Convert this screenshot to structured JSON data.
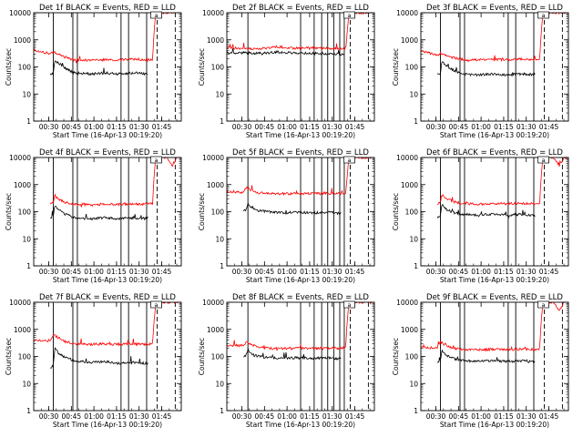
{
  "figure": {
    "xlabel": "Start Time (16-Apr-13 00:19:20)",
    "ylabel": "Counts/sec",
    "y_ticks": [
      "1",
      "10",
      "100",
      "1000",
      "10000"
    ],
    "legend_marker": "a"
  },
  "chart_data": [
    {
      "type": "line",
      "title": "Det 1f  BLACK = Events, RED = LLD",
      "y_scale": "log",
      "ylim": [
        1,
        10000
      ],
      "x_ticks": [
        "00:30",
        "00:45",
        "01:00",
        "01:15",
        "01:30",
        "01:45"
      ],
      "x_tick_times": [
        30,
        45,
        60,
        75,
        90,
        105
      ],
      "xlim": [
        20,
        118
      ],
      "solid_markers": [
        33,
        46,
        49,
        78,
        83,
        95
      ],
      "dashed_markers": [
        102,
        114
      ],
      "series": [
        {
          "name": "LLD",
          "color": "#ff0000",
          "start": 20,
          "end": 116,
          "x": [
            20,
            31,
            33,
            36,
            41,
            47,
            57,
            67,
            77,
            87,
            95,
            99,
            99.5,
            101,
            116
          ],
          "y": [
            420,
            300,
            360,
            300,
            230,
            180,
            175,
            185,
            180,
            195,
            180,
            185,
            900,
            10000,
            10000
          ]
        },
        {
          "name": "Events",
          "color": "#000000",
          "start": 31,
          "end": 96,
          "x": [
            31,
            33,
            34,
            36,
            41,
            47,
            57,
            67,
            77,
            87,
            96
          ],
          "y": [
            60,
            55,
            180,
            140,
            90,
            60,
            55,
            60,
            55,
            60,
            55
          ]
        }
      ]
    },
    {
      "type": "line",
      "title": "Det 2f  BLACK = Events, RED = LLD",
      "y_scale": "log",
      "ylim": [
        1,
        10000
      ],
      "x_ticks": [
        "00:30",
        "00:45",
        "01:00",
        "01:15",
        "01:30",
        "01:45"
      ],
      "x_tick_times": [
        30,
        45,
        60,
        75,
        90,
        105
      ],
      "xlim": [
        20,
        118
      ],
      "solid_markers": [
        34,
        69,
        78,
        83,
        87,
        91,
        95,
        98
      ],
      "dashed_markers": [
        102,
        114
      ],
      "series": [
        {
          "name": "LLD",
          "color": "#ff0000",
          "start": 20,
          "end": 116,
          "x": [
            20,
            34,
            44,
            54,
            64,
            74,
            84,
            94,
            99,
            100,
            101,
            116
          ],
          "y": [
            520,
            460,
            480,
            560,
            490,
            520,
            480,
            470,
            460,
            2000,
            10000,
            10000
          ]
        },
        {
          "name": "Events",
          "color": "#000000",
          "start": 20,
          "end": 98,
          "x": [
            20,
            34,
            44,
            54,
            64,
            74,
            84,
            94,
            98
          ],
          "y": [
            330,
            330,
            320,
            350,
            330,
            320,
            310,
            290,
            300
          ]
        }
      ]
    },
    {
      "type": "line",
      "title": "Det 3f  BLACK = Events, RED = LLD",
      "y_scale": "log",
      "ylim": [
        1,
        10000
      ],
      "x_ticks": [
        "00:30",
        "00:45",
        "01:00",
        "01:15",
        "01:30",
        "01:45"
      ],
      "x_tick_times": [
        30,
        45,
        60,
        75,
        90,
        105
      ],
      "xlim": [
        20,
        118
      ],
      "solid_markers": [
        33,
        46,
        49,
        78,
        83,
        95
      ],
      "dashed_markers": [
        102,
        114
      ],
      "series": [
        {
          "name": "LLD",
          "color": "#ff0000",
          "start": 20,
          "end": 116,
          "x": [
            20,
            31,
            33,
            36,
            41,
            47,
            57,
            67,
            77,
            87,
            95,
            99,
            99.5,
            101,
            116
          ],
          "y": [
            400,
            260,
            320,
            280,
            220,
            190,
            180,
            190,
            185,
            195,
            190,
            195,
            900,
            10000,
            10000
          ]
        },
        {
          "name": "Events",
          "color": "#000000",
          "start": 31,
          "end": 96,
          "x": [
            31,
            33,
            34,
            36,
            41,
            47,
            57,
            67,
            77,
            87,
            96
          ],
          "y": [
            60,
            55,
            160,
            120,
            80,
            55,
            50,
            55,
            50,
            55,
            50
          ]
        }
      ]
    },
    {
      "type": "line",
      "title": "Det 4f  BLACK = Events, RED = LLD",
      "y_scale": "log",
      "ylim": [
        1,
        10000
      ],
      "x_ticks": [
        "00:30",
        "00:45",
        "01:00",
        "01:15",
        "01:30",
        "01:45"
      ],
      "x_tick_times": [
        30,
        45,
        60,
        75,
        90,
        105
      ],
      "xlim": [
        20,
        118
      ],
      "solid_markers": [
        33,
        46,
        49,
        78,
        83,
        95
      ],
      "dashed_markers": [
        102,
        114
      ],
      "series": [
        {
          "name": "LLD",
          "color": "#ff0000",
          "start": 31,
          "end": 118,
          "x": [
            31,
            33,
            34,
            36,
            41,
            47,
            57,
            67,
            77,
            87,
            95,
            99,
            99.5,
            101,
            108,
            112,
            115,
            118
          ],
          "y": [
            200,
            220,
            400,
            300,
            220,
            190,
            180,
            190,
            185,
            195,
            190,
            195,
            900,
            10000,
            10000,
            5000,
            10000,
            10000
          ]
        },
        {
          "name": "Events",
          "color": "#000000",
          "start": 31,
          "end": 96,
          "x": [
            31,
            33,
            34,
            36,
            41,
            47,
            57,
            67,
            77,
            87,
            96
          ],
          "y": [
            60,
            70,
            160,
            120,
            80,
            60,
            55,
            60,
            55,
            60,
            55
          ]
        }
      ]
    },
    {
      "type": "line",
      "title": "Det 5f  BLACK = Events, RED = LLD",
      "y_scale": "log",
      "ylim": [
        1,
        10000
      ],
      "x_ticks": [
        "00:30",
        "00:45",
        "01:00",
        "01:15",
        "01:30",
        "01:45"
      ],
      "x_tick_times": [
        30,
        45,
        60,
        75,
        90,
        105
      ],
      "xlim": [
        20,
        118
      ],
      "solid_markers": [
        34,
        69,
        78,
        83,
        87,
        91,
        95,
        98
      ],
      "dashed_markers": [
        102,
        114
      ],
      "series": [
        {
          "name": "LLD",
          "color": "#ff0000",
          "start": 20,
          "end": 116,
          "x": [
            20,
            31,
            33,
            36,
            41,
            47,
            57,
            67,
            77,
            87,
            95,
            99,
            99.5,
            101,
            116
          ],
          "y": [
            560,
            520,
            800,
            600,
            500,
            470,
            460,
            470,
            470,
            480,
            470,
            480,
            1000,
            10000,
            10000
          ]
        },
        {
          "name": "Events",
          "color": "#000000",
          "start": 31,
          "end": 96,
          "x": [
            31,
            33,
            34,
            36,
            41,
            47,
            57,
            67,
            77,
            87,
            96
          ],
          "y": [
            110,
            120,
            200,
            150,
            110,
            100,
            90,
            95,
            90,
            95,
            85
          ]
        }
      ]
    },
    {
      "type": "line",
      "title": "Det 6f  BLACK = Events, RED = LLD",
      "y_scale": "log",
      "ylim": [
        1,
        10000
      ],
      "x_ticks": [
        "00:30",
        "00:45",
        "01:00",
        "01:15",
        "01:30",
        "01:45"
      ],
      "x_tick_times": [
        30,
        45,
        60,
        75,
        90,
        105
      ],
      "xlim": [
        20,
        118
      ],
      "solid_markers": [
        33,
        46,
        49,
        78,
        83,
        95
      ],
      "dashed_markers": [
        102,
        114
      ],
      "series": [
        {
          "name": "LLD",
          "color": "#ff0000",
          "start": 31,
          "end": 118,
          "x": [
            31,
            33,
            34,
            36,
            41,
            47,
            57,
            67,
            77,
            87,
            95,
            99,
            99.5,
            101,
            108,
            112,
            115,
            118
          ],
          "y": [
            200,
            220,
            420,
            320,
            240,
            200,
            190,
            200,
            195,
            205,
            200,
            205,
            900,
            10000,
            10000,
            5000,
            10000,
            10000
          ]
        },
        {
          "name": "Events",
          "color": "#000000",
          "start": 31,
          "end": 96,
          "x": [
            31,
            33,
            34,
            36,
            41,
            47,
            57,
            67,
            77,
            87,
            96
          ],
          "y": [
            60,
            70,
            180,
            130,
            95,
            80,
            75,
            80,
            75,
            80,
            70
          ]
        }
      ]
    },
    {
      "type": "line",
      "title": "Det 7f  BLACK = Events, RED = LLD",
      "y_scale": "log",
      "ylim": [
        1,
        10000
      ],
      "x_ticks": [
        "00:30",
        "00:45",
        "01:00",
        "01:15",
        "01:30",
        "01:45"
      ],
      "x_tick_times": [
        30,
        45,
        60,
        75,
        90,
        105
      ],
      "xlim": [
        20,
        118
      ],
      "solid_markers": [
        33,
        46,
        49,
        78,
        83,
        95
      ],
      "dashed_markers": [
        102,
        114
      ],
      "series": [
        {
          "name": "LLD",
          "color": "#ff0000",
          "start": 20,
          "end": 116,
          "x": [
            20,
            31,
            33,
            36,
            41,
            47,
            57,
            67,
            77,
            87,
            95,
            99,
            99.5,
            101,
            116
          ],
          "y": [
            400,
            380,
            650,
            500,
            350,
            300,
            280,
            290,
            280,
            290,
            280,
            290,
            900,
            10000,
            10000
          ]
        },
        {
          "name": "Events",
          "color": "#000000",
          "start": 31,
          "end": 96,
          "x": [
            31,
            33,
            34,
            36,
            41,
            47,
            57,
            67,
            77,
            87,
            96
          ],
          "y": [
            40,
            45,
            200,
            140,
            90,
            70,
            60,
            65,
            55,
            60,
            55
          ]
        }
      ]
    },
    {
      "type": "line",
      "title": "Det 8f  BLACK = Events, RED = LLD",
      "y_scale": "log",
      "ylim": [
        1,
        10000
      ],
      "x_ticks": [
        "00:30",
        "00:45",
        "01:00",
        "01:15",
        "01:30",
        "01:45"
      ],
      "x_tick_times": [
        30,
        45,
        60,
        75,
        90,
        105
      ],
      "xlim": [
        20,
        118
      ],
      "solid_markers": [
        34,
        69,
        78,
        83,
        87,
        91,
        95,
        98
      ],
      "dashed_markers": [
        102,
        114
      ],
      "series": [
        {
          "name": "LLD",
          "color": "#ff0000",
          "start": 20,
          "end": 116,
          "x": [
            20,
            31,
            33,
            36,
            41,
            47,
            57,
            67,
            77,
            87,
            95,
            99,
            99.5,
            101,
            116
          ],
          "y": [
            260,
            250,
            350,
            280,
            220,
            200,
            195,
            200,
            200,
            205,
            200,
            205,
            900,
            10000,
            10000
          ]
        },
        {
          "name": "Events",
          "color": "#000000",
          "start": 31,
          "end": 96,
          "x": [
            31,
            33,
            34,
            36,
            41,
            47,
            57,
            67,
            77,
            87,
            96
          ],
          "y": [
            100,
            110,
            180,
            130,
            100,
            90,
            85,
            90,
            85,
            90,
            80
          ]
        }
      ]
    },
    {
      "type": "line",
      "title": "Det 9f  BLACK = Events, RED = LLD",
      "y_scale": "log",
      "ylim": [
        1,
        10000
      ],
      "x_ticks": [
        "00:30",
        "00:45",
        "01:00",
        "01:15",
        "01:30",
        "01:45"
      ],
      "x_tick_times": [
        30,
        45,
        60,
        75,
        90,
        105
      ],
      "xlim": [
        20,
        118
      ],
      "solid_markers": [
        33,
        46,
        49,
        78,
        83,
        95
      ],
      "dashed_markers": [
        102,
        114
      ],
      "series": [
        {
          "name": "LLD",
          "color": "#ff0000",
          "start": 20,
          "end": 118,
          "x": [
            20,
            31,
            33,
            36,
            41,
            47,
            57,
            67,
            77,
            87,
            95,
            99,
            99.5,
            101,
            108,
            112,
            115,
            118
          ],
          "y": [
            220,
            200,
            350,
            260,
            200,
            180,
            175,
            180,
            180,
            185,
            180,
            185,
            900,
            10000,
            10000,
            5000,
            10000,
            10000
          ]
        },
        {
          "name": "Events",
          "color": "#000000",
          "start": 31,
          "end": 96,
          "x": [
            31,
            33,
            34,
            36,
            41,
            47,
            57,
            67,
            77,
            87,
            96
          ],
          "y": [
            60,
            70,
            170,
            120,
            85,
            70,
            65,
            70,
            65,
            70,
            60
          ]
        }
      ]
    }
  ]
}
